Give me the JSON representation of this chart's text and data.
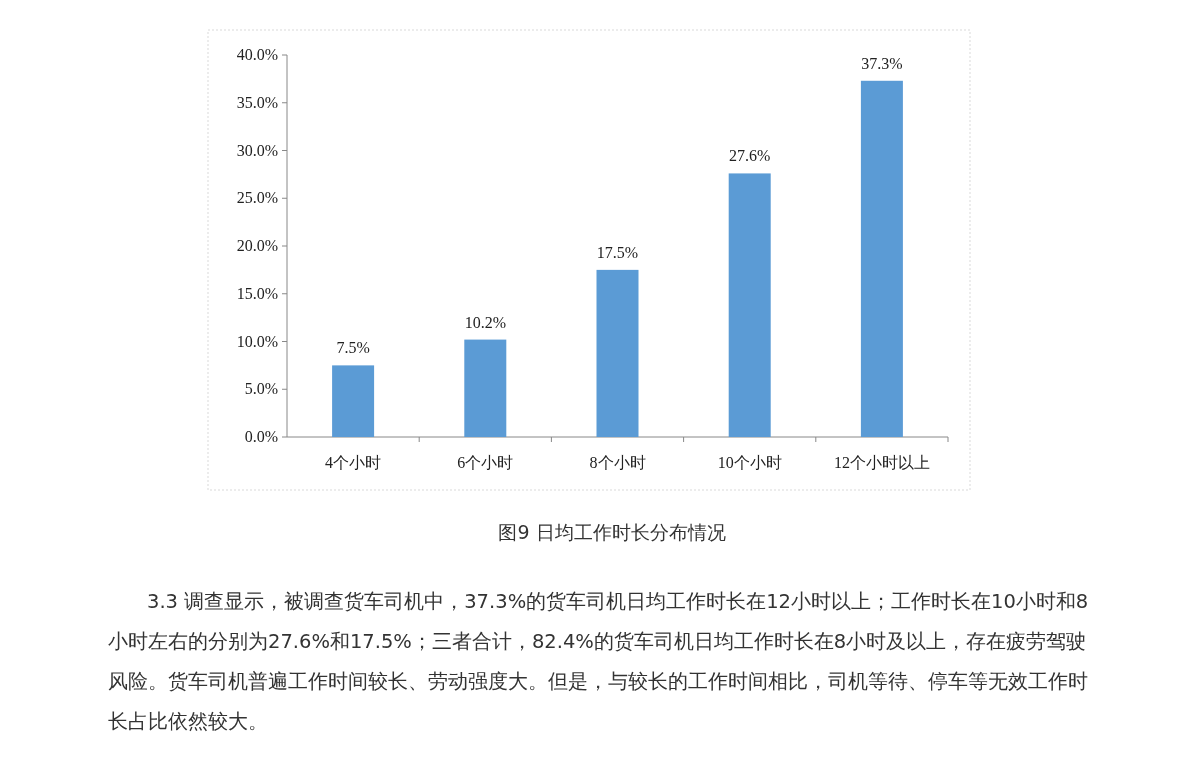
{
  "chart_data": {
    "type": "bar",
    "categories": [
      "4个小时",
      "6个小时",
      "8个小时",
      "10个小时",
      "12个小时以上"
    ],
    "values": [
      7.5,
      10.2,
      17.5,
      27.6,
      37.3
    ],
    "color": "#5b9bd5",
    "value_labels": [
      "7.5%",
      "10.2%",
      "17.5%",
      "27.6%",
      "37.3%"
    ],
    "ylim": [
      0,
      40
    ],
    "yticks": [
      {
        "value": 0,
        "label": "0.0%"
      },
      {
        "value": 5,
        "label": "5.0%"
      },
      {
        "value": 10,
        "label": "10.0%"
      },
      {
        "value": 15,
        "label": "15.0%"
      },
      {
        "value": 20,
        "label": "20.0%"
      },
      {
        "value": 25,
        "label": "25.0%"
      },
      {
        "value": 30,
        "label": "30.0%"
      },
      {
        "value": 35,
        "label": "35.0%"
      },
      {
        "value": 40,
        "label": "40.0%"
      }
    ],
    "grid": false,
    "annotations": [
      "图9 日均工作时长分布情况",
      "3.3 调查显示，被调查货车司机中，37.3%的货车司机日均工作时长在12小时以上；工作时长在10小时和8小时左右的分别为27.6%和17.5%；三者合计，82.4%的货车司机日均工作时长在8小时及以上，存在疲劳驾驶风险。货车司机普遍工作时间较长、劳动强度大。但是，与较长的工作时间相比，司机等待、停车等无效工作时长占比依然较大。"
    ]
  }
}
